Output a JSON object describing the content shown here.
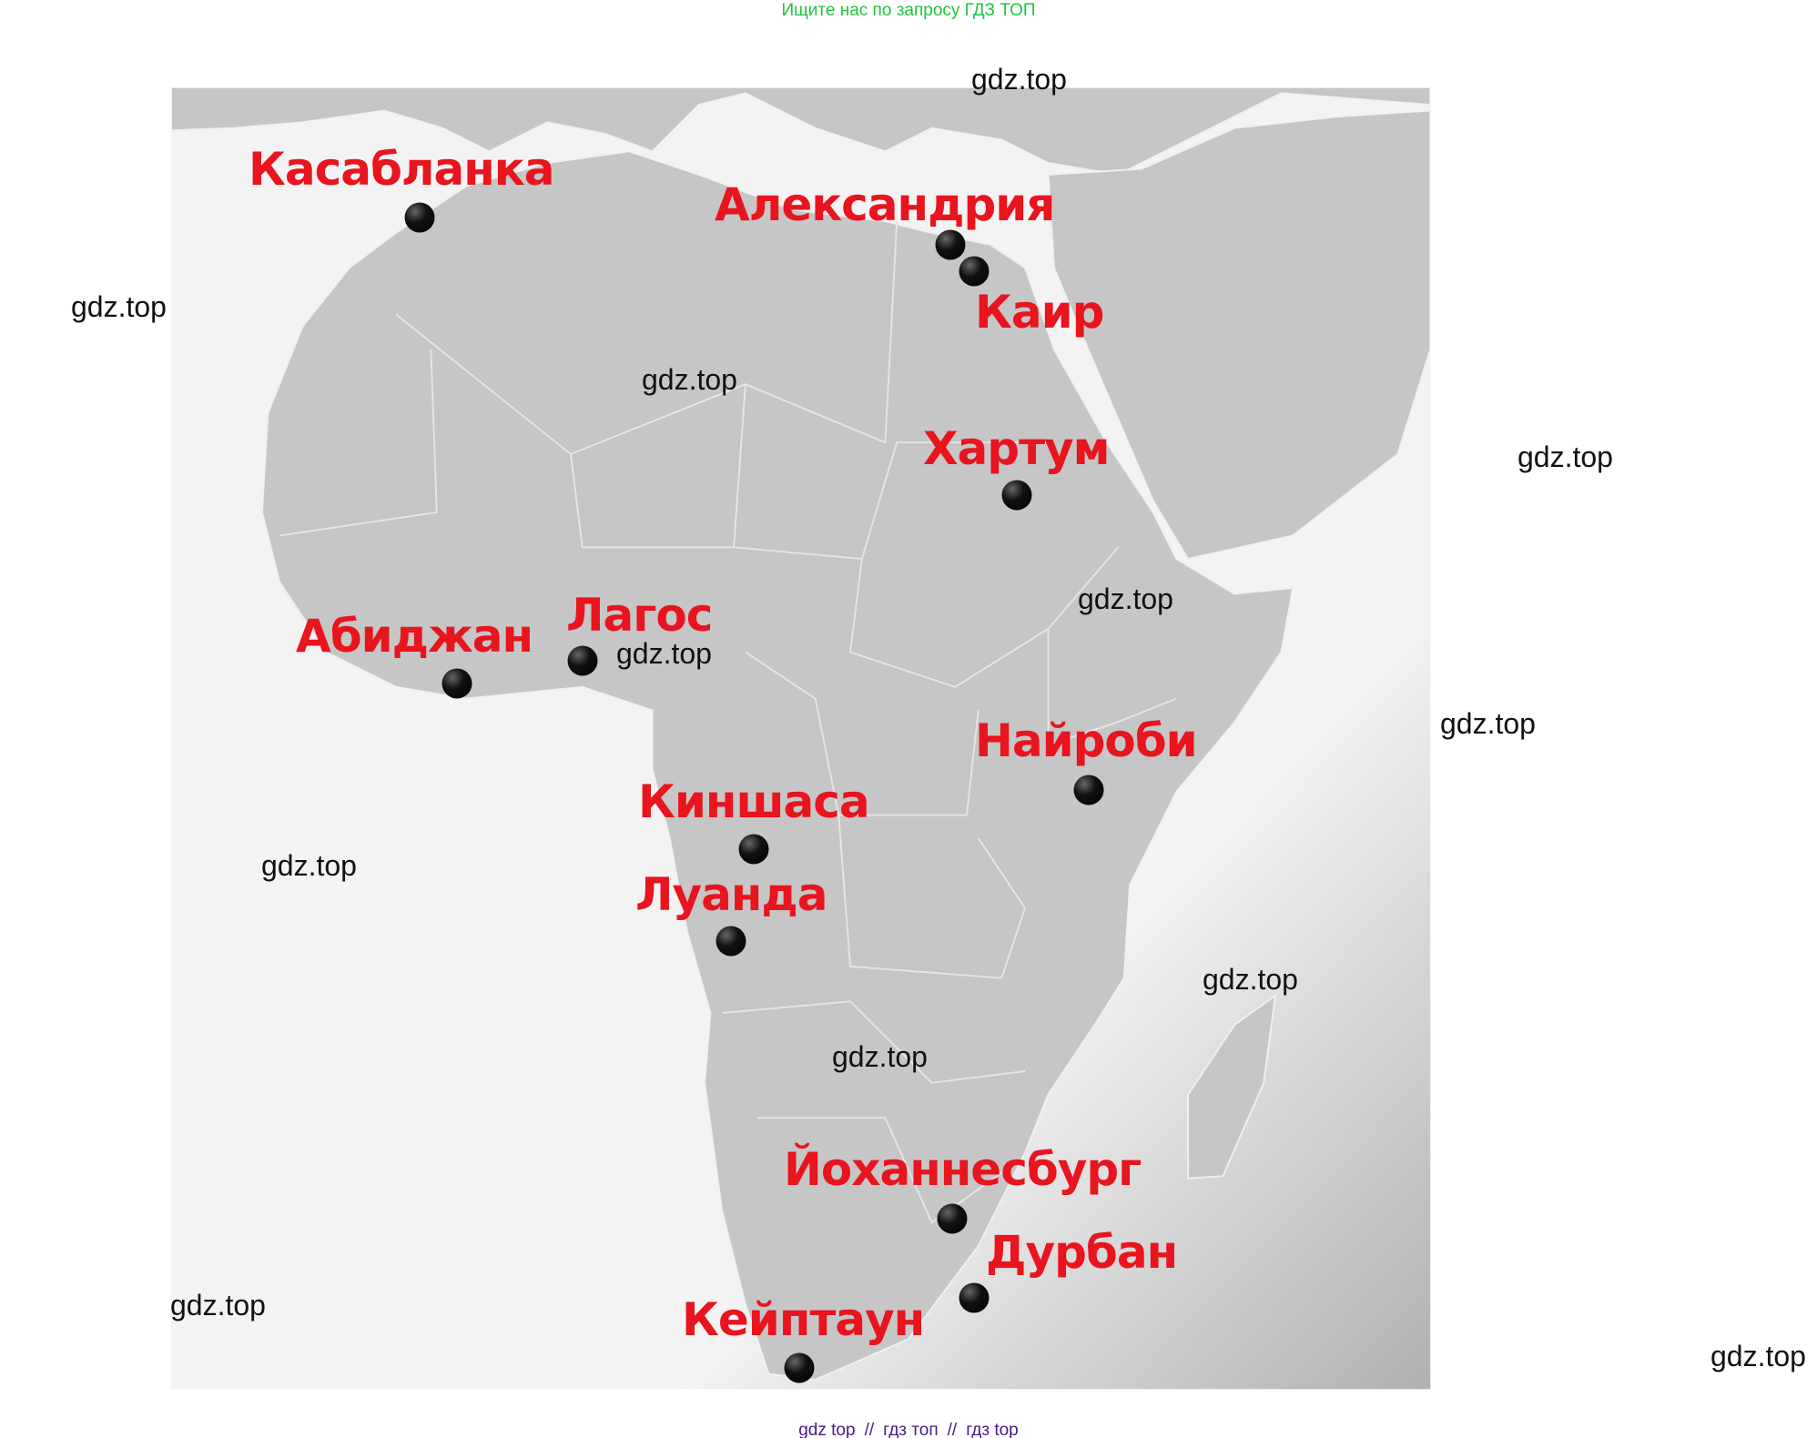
{
  "header": {
    "search_hint": "Ищите нас по запросу ГДЗ ТОП"
  },
  "footer": {
    "items": [
      "gdz top",
      "гдз топ",
      "гдз top"
    ],
    "separator": "//"
  },
  "colors": {
    "land": "#c6c6c6",
    "sea": "#f2f2f2",
    "label": "#e8141e",
    "dot": "#000000",
    "header": "#22c43a",
    "footer": "#4a1a86"
  },
  "map": {
    "region": "Africa",
    "cities": [
      {
        "name": "Касабланка"
      },
      {
        "name": "Александрия"
      },
      {
        "name": "Каир"
      },
      {
        "name": "Хартум"
      },
      {
        "name": "Абиджан"
      },
      {
        "name": "Лагос"
      },
      {
        "name": "Найроби"
      },
      {
        "name": "Киншаса"
      },
      {
        "name": "Луанда"
      },
      {
        "name": "Йоханнесбург"
      },
      {
        "name": "Дурбан"
      },
      {
        "name": "Кейптаун"
      }
    ]
  },
  "watermark": {
    "text": "gdz.top"
  }
}
